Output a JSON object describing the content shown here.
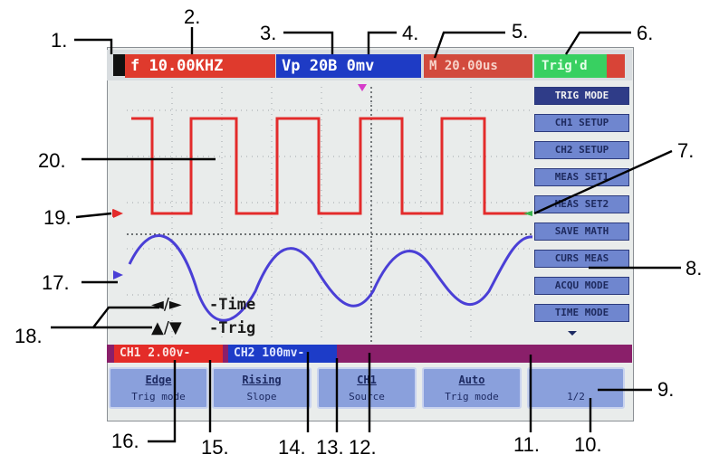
{
  "top_bar": {
    "freq": "f  10.00KHZ",
    "vp": "Vp 20B 0mv",
    "timebase": "M 20.00us",
    "trig_status": "Trig'd"
  },
  "side_menu": [
    "TRIG MODE",
    "CH1 SETUP",
    "CH2 SETUP",
    "MEAS SET1",
    "MEAS SET2",
    "SAVE MATH",
    "CURS MEAS",
    "ACQU MODE",
    "TIME MODE"
  ],
  "bottom_status": {
    "ch1": "CH1 2.00v-",
    "ch2": "CH2 100mv-"
  },
  "softkeys": [
    {
      "top": "Edge",
      "bottom": "Trig mode"
    },
    {
      "top": "Rising",
      "bottom": "Slope"
    },
    {
      "top": "CH1",
      "bottom": "Source"
    },
    {
      "top": "Auto",
      "bottom": "Trig mode"
    },
    {
      "top": "",
      "bottom": "1/2"
    }
  ],
  "legend": {
    "time_arrows": "◄/►",
    "time_label": "-Time",
    "trig_arrows": "▲/▼",
    "trig_label": "-Trig"
  },
  "callouts": [
    "1.",
    "2.",
    "3.",
    "4.",
    "5.",
    "6.",
    "7.",
    "8.",
    "9.",
    "10.",
    "11.",
    "12.",
    "13.",
    "14.",
    "15.",
    "16.",
    "17.",
    "18.",
    "19.",
    "20."
  ],
  "colors": {
    "square_wave": "#e32b2b",
    "sine_wave": "#4a3fd6",
    "trig_status_bg": "#38d061",
    "ch1_bg": "#e42c28",
    "ch2_bg": "#1d3cc8",
    "status_bar_bg": "#8a1f6a"
  }
}
